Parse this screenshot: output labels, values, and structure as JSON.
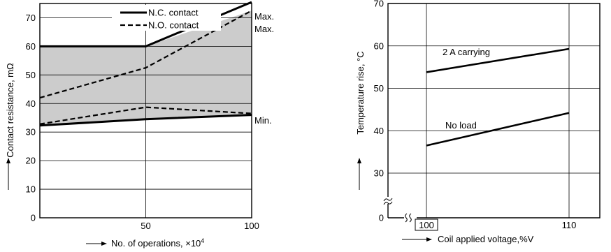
{
  "chart_data": [
    {
      "type": "line",
      "title": "",
      "xlabel": "No. of operations, ×10",
      "xlabel_sup": "4",
      "ylabel": "Contact resistance, mΩ",
      "xlim": [
        0,
        100
      ],
      "ylim": [
        0,
        75
      ],
      "x_ticks": [
        "50",
        "100"
      ],
      "y_ticks": [
        "0",
        "10",
        "20",
        "30",
        "40",
        "50",
        "60",
        "70"
      ],
      "grid": true,
      "legend": {
        "placement": "top-center",
        "entries": [
          {
            "label": "N.C. contact",
            "style": "solid"
          },
          {
            "label": "N.O. contact",
            "style": "dashed"
          }
        ]
      },
      "shaded_band": {
        "upper": {
          "x": [
            0,
            50,
            100
          ],
          "y": [
            60,
            60,
            72.5
          ]
        },
        "lower": {
          "x": [
            0,
            50,
            100
          ],
          "y": [
            32.5,
            34.5,
            36
          ]
        },
        "color": "#cccccc"
      },
      "series": [
        {
          "style": "solid",
          "x": [
            0,
            50,
            100
          ],
          "y": [
            60,
            60,
            75.5
          ]
        },
        {
          "style": "dashed",
          "x": [
            0,
            50,
            100
          ],
          "y": [
            42,
            52.5,
            72.5
          ]
        },
        {
          "style": "dashed",
          "x": [
            0,
            50,
            100
          ],
          "y": [
            32.8,
            38.7,
            36.5
          ]
        },
        {
          "style": "solid",
          "x": [
            0,
            50,
            100
          ],
          "y": [
            32.3,
            34.5,
            36
          ]
        }
      ],
      "annotations": [
        {
          "text": "Max.",
          "x": 100,
          "y": 75.5
        },
        {
          "text": "Max.",
          "x": 100,
          "y": 72.5
        },
        {
          "text": "Min.",
          "x": 100,
          "y": 36
        }
      ]
    },
    {
      "type": "line",
      "title": "",
      "xlabel": "Coil applied voltage,%V",
      "ylabel": "Temperature rise, °C",
      "xlim": [
        100,
        110
      ],
      "ylim": [
        30,
        70
      ],
      "x_ticks": [
        "100",
        "110"
      ],
      "y_ticks": [
        "0",
        "30",
        "40",
        "50",
        "60",
        "70"
      ],
      "axis_break": true,
      "grid": true,
      "series": [
        {
          "name": "2 A carrying",
          "x": [
            100,
            110
          ],
          "y": [
            53.8,
            59.3
          ]
        },
        {
          "name": "No load",
          "x": [
            100,
            110
          ],
          "y": [
            36.5,
            44.2
          ]
        }
      ]
    }
  ]
}
